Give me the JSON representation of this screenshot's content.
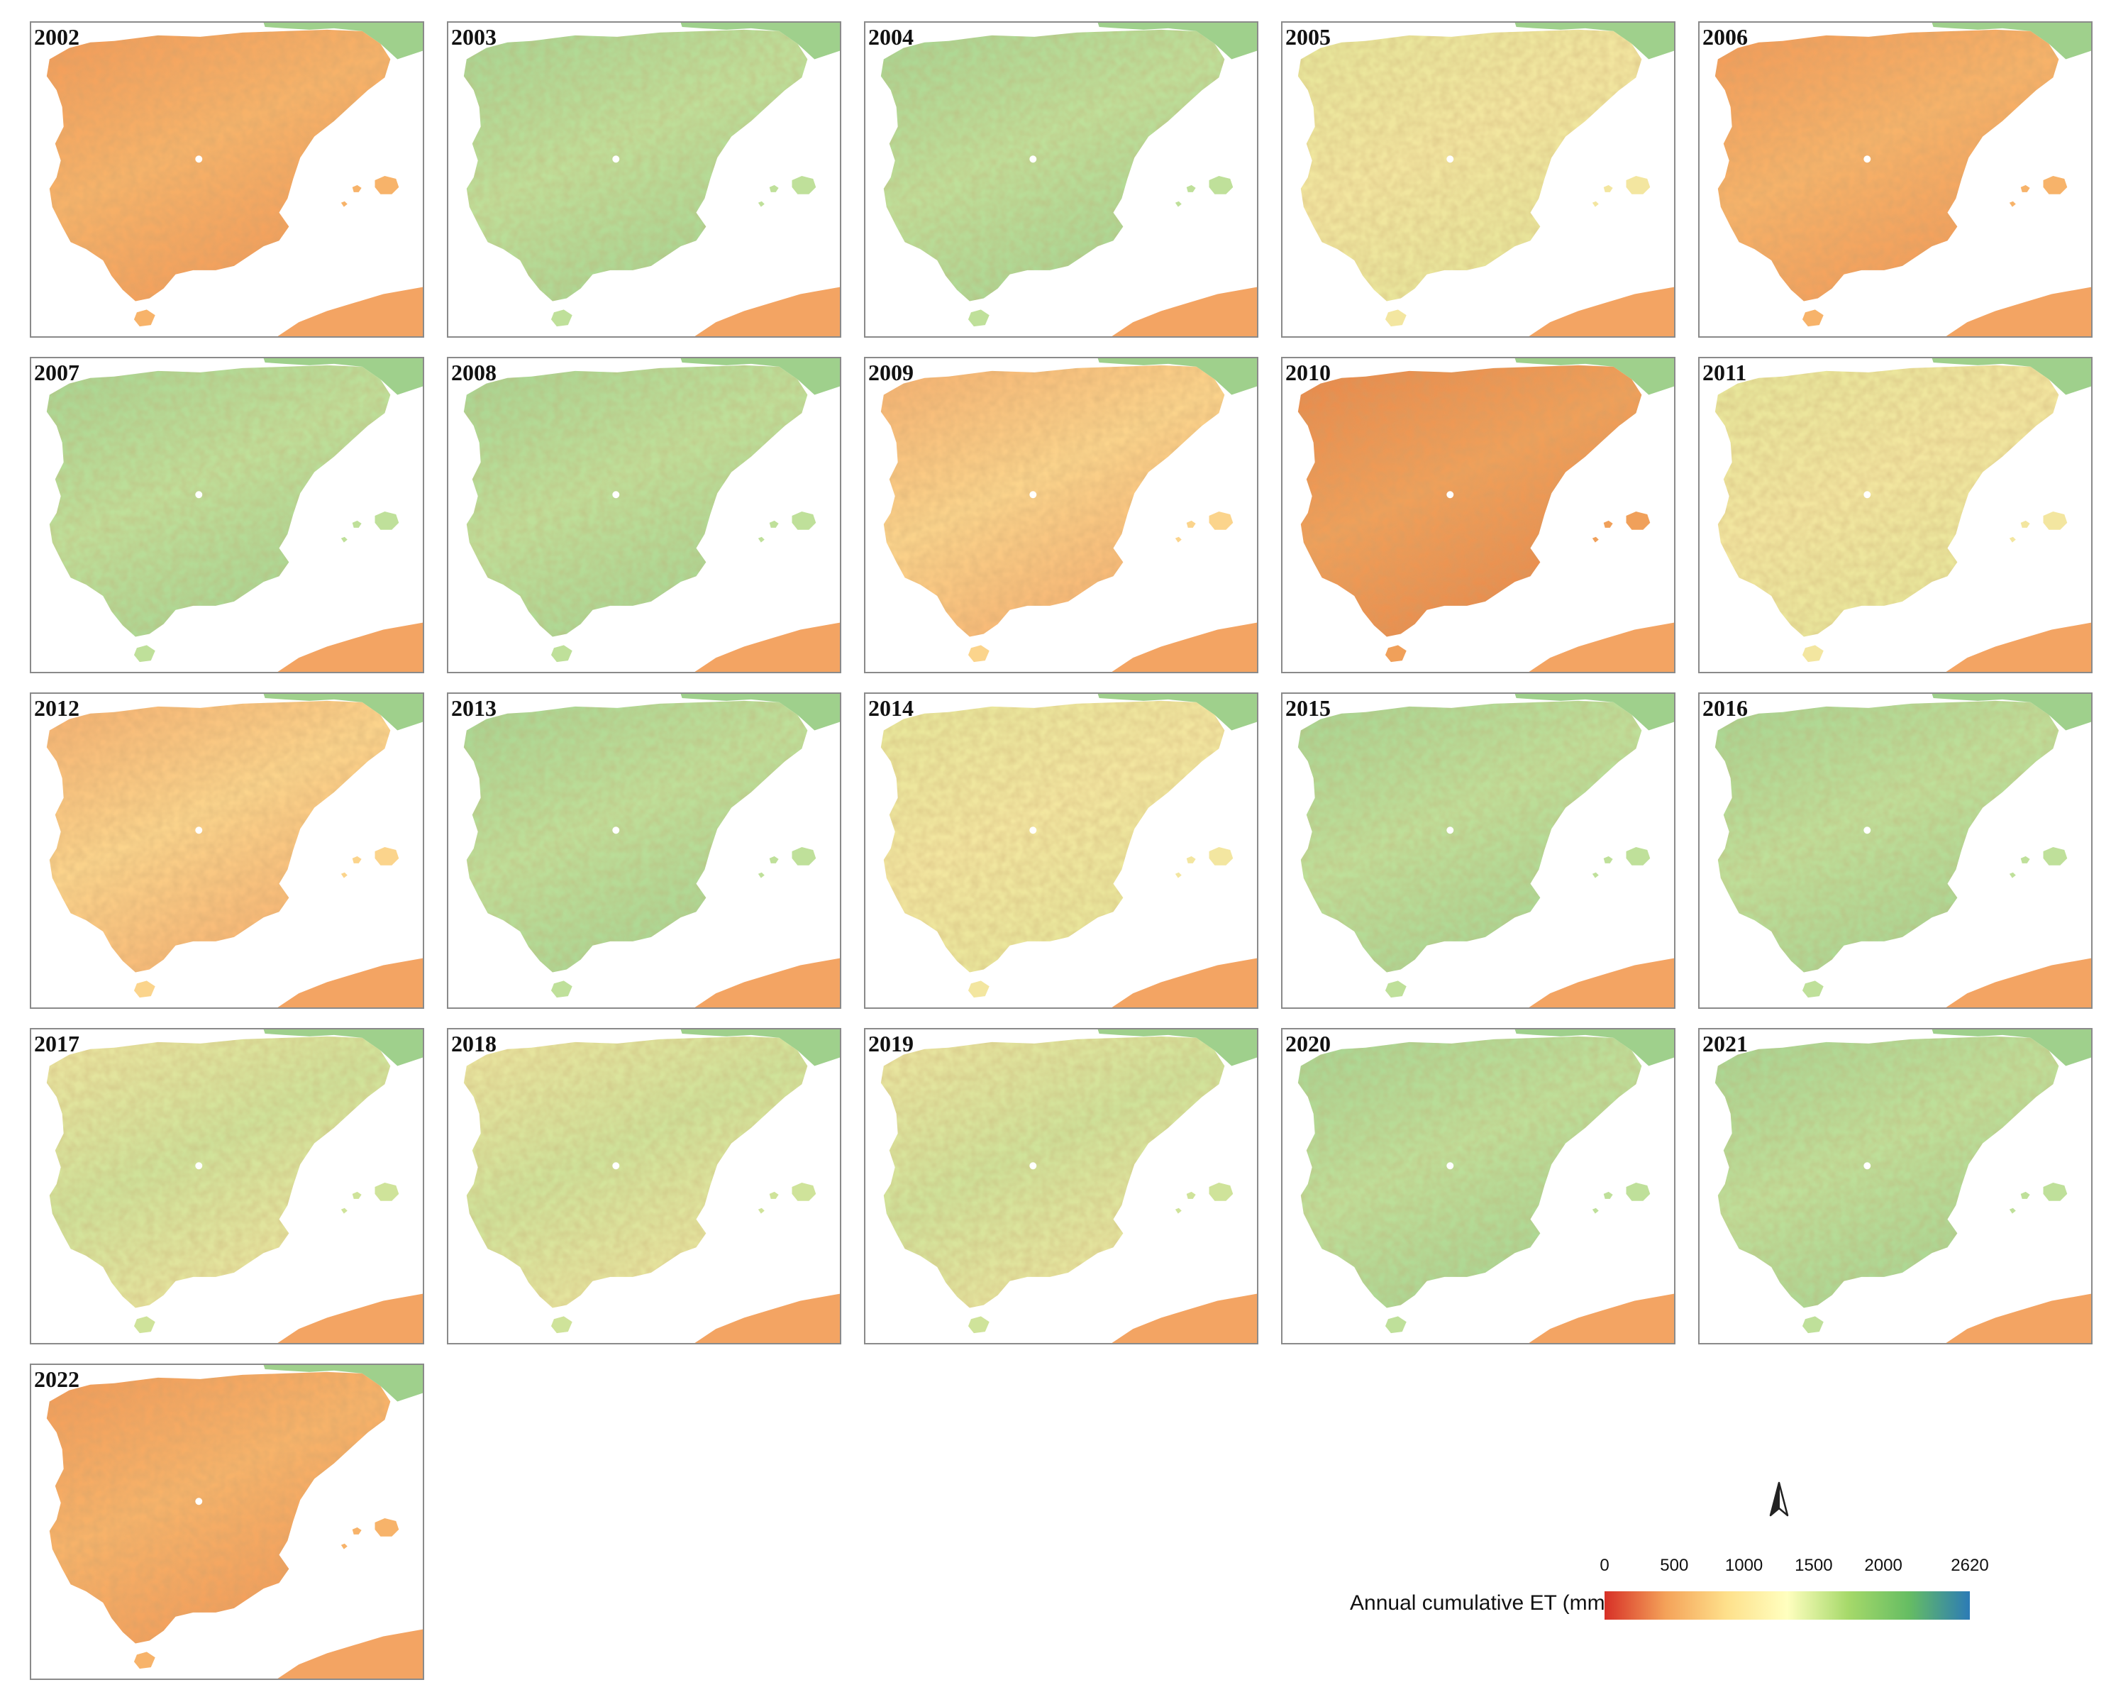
{
  "figure": {
    "panels": [
      {
        "year": "2002",
        "tone": "dry"
      },
      {
        "year": "2003",
        "tone": "wet"
      },
      {
        "year": "2004",
        "tone": "wet"
      },
      {
        "year": "2005",
        "tone": "mid"
      },
      {
        "year": "2006",
        "tone": "dry"
      },
      {
        "year": "2007",
        "tone": "wet"
      },
      {
        "year": "2008",
        "tone": "wet"
      },
      {
        "year": "2009",
        "tone": "dry-mid"
      },
      {
        "year": "2010",
        "tone": "very-dry"
      },
      {
        "year": "2011",
        "tone": "mid"
      },
      {
        "year": "2012",
        "tone": "dry-mid"
      },
      {
        "year": "2013",
        "tone": "wet"
      },
      {
        "year": "2014",
        "tone": "mid"
      },
      {
        "year": "2015",
        "tone": "wet"
      },
      {
        "year": "2016",
        "tone": "wet"
      },
      {
        "year": "2017",
        "tone": "wet-mid"
      },
      {
        "year": "2018",
        "tone": "wet-mid"
      },
      {
        "year": "2019",
        "tone": "wet-mid"
      },
      {
        "year": "2020",
        "tone": "wet"
      },
      {
        "year": "2021",
        "tone": "wet"
      },
      {
        "year": "2022",
        "tone": "dry"
      }
    ],
    "legend": {
      "title": "Annual cumulative ET (mm)",
      "ticks": [
        "0",
        "500",
        "1000",
        "1500",
        "2000",
        "2620"
      ],
      "tick_values": [
        0,
        500,
        1000,
        1500,
        2000,
        2620
      ],
      "range": [
        0,
        2620
      ],
      "colors": [
        "#d73027",
        "#f4a259",
        "#fee08b",
        "#ffffbf",
        "#a6d96a",
        "#66bd63",
        "#2c7bb6"
      ]
    },
    "north_arrow": "north-arrow-icon",
    "palette": {
      "very-dry": [
        "#f0a05a",
        "#e8884a"
      ],
      "dry": [
        "#f7b36a",
        "#f29a58"
      ],
      "dry-mid": [
        "#fbd48c",
        "#f6b070"
      ],
      "mid": [
        "#f3e6a0",
        "#e6e79a"
      ],
      "wet-mid": [
        "#cfe39a",
        "#eee5a0"
      ],
      "wet": [
        "#bfe09a",
        "#a7d592"
      ],
      "france": "#9fd08c",
      "africa": "#f3a463"
    }
  }
}
